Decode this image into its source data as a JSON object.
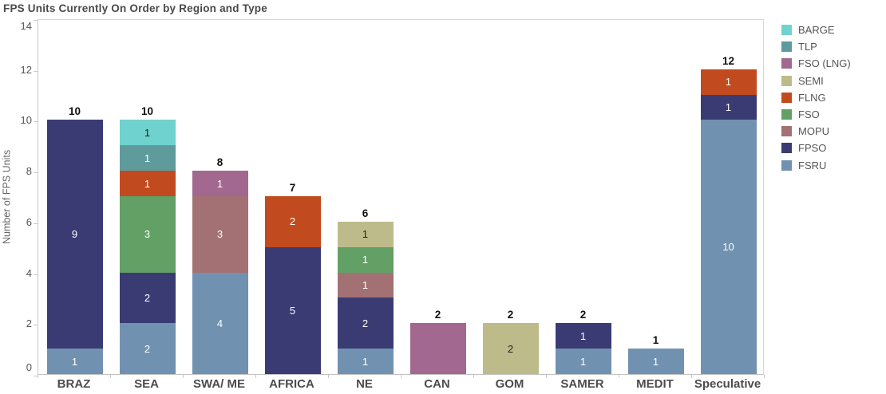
{
  "chart_data": {
    "type": "bar",
    "stacked": true,
    "title": "FPS Units Currently On Order by Region and Type",
    "xlabel": "",
    "ylabel": "Number of FPS Units",
    "ylim": [
      0,
      14
    ],
    "yticks": [
      0,
      2,
      4,
      6,
      8,
      10,
      12,
      14
    ],
    "grid": false,
    "legend_position": "top-right",
    "categories": [
      "BRAZ",
      "SEA",
      "SWA/ ME",
      "AFRICA",
      "NE",
      "CAN",
      "GOM",
      "SAMER",
      "MEDIT",
      "Speculative"
    ],
    "totals": [
      10,
      10,
      8,
      7,
      6,
      2,
      2,
      2,
      1,
      12
    ],
    "legend": [
      {
        "label": "BARGE",
        "color": "#6FD2CE",
        "text_color": "#1e1e1e"
      },
      {
        "label": "TLP",
        "color": "#5F9B9D",
        "text_color": "#ffffff"
      },
      {
        "label": "FSO (LNG)",
        "color": "#A2688F",
        "text_color": "#ffffff"
      },
      {
        "label": "SEMI",
        "color": "#BEBB8A",
        "text_color": "#1e1e1e"
      },
      {
        "label": "FLNG",
        "color": "#C14B1E",
        "text_color": "#ffffff"
      },
      {
        "label": "FSO",
        "color": "#62A066",
        "text_color": "#ffffff"
      },
      {
        "label": "MOPU",
        "color": "#A37173",
        "text_color": "#ffffff"
      },
      {
        "label": "FPSO",
        "color": "#3B3B74",
        "text_color": "#ffffff"
      },
      {
        "label": "FSRU",
        "color": "#7191B0",
        "text_color": "#ffffff"
      }
    ],
    "stacks": [
      {
        "category": "BRAZ",
        "segments": [
          {
            "type": "FSRU",
            "value": 1
          },
          {
            "type": "FPSO",
            "value": 9
          }
        ]
      },
      {
        "category": "SEA",
        "segments": [
          {
            "type": "FSRU",
            "value": 2
          },
          {
            "type": "FPSO",
            "value": 2
          },
          {
            "type": "FSO",
            "value": 3
          },
          {
            "type": "FLNG",
            "value": 1
          },
          {
            "type": "TLP",
            "value": 1
          },
          {
            "type": "BARGE",
            "value": 1
          }
        ]
      },
      {
        "category": "SWA/ ME",
        "segments": [
          {
            "type": "FSRU",
            "value": 4
          },
          {
            "type": "MOPU",
            "value": 3
          },
          {
            "type": "FSO (LNG)",
            "value": 1
          }
        ]
      },
      {
        "category": "AFRICA",
        "segments": [
          {
            "type": "FPSO",
            "value": 5
          },
          {
            "type": "FLNG",
            "value": 2
          }
        ]
      },
      {
        "category": "NE",
        "segments": [
          {
            "type": "FSRU",
            "value": 1
          },
          {
            "type": "FPSO",
            "value": 2
          },
          {
            "type": "MOPU",
            "value": 1
          },
          {
            "type": "FSO",
            "value": 1
          },
          {
            "type": "SEMI",
            "value": 1
          }
        ]
      },
      {
        "category": "CAN",
        "segments": [
          {
            "type": "FSO (LNG)",
            "value": 2,
            "show_label": false
          }
        ]
      },
      {
        "category": "GOM",
        "segments": [
          {
            "type": "SEMI",
            "value": 2
          }
        ]
      },
      {
        "category": "SAMER",
        "segments": [
          {
            "type": "FSRU",
            "value": 1
          },
          {
            "type": "FPSO",
            "value": 1
          }
        ]
      },
      {
        "category": "MEDIT",
        "segments": [
          {
            "type": "FSRU",
            "value": 1
          }
        ]
      },
      {
        "category": "Speculative",
        "segments": [
          {
            "type": "FSRU",
            "value": 10
          },
          {
            "type": "FPSO",
            "value": 1
          },
          {
            "type": "FLNG",
            "value": 1
          }
        ]
      }
    ]
  }
}
